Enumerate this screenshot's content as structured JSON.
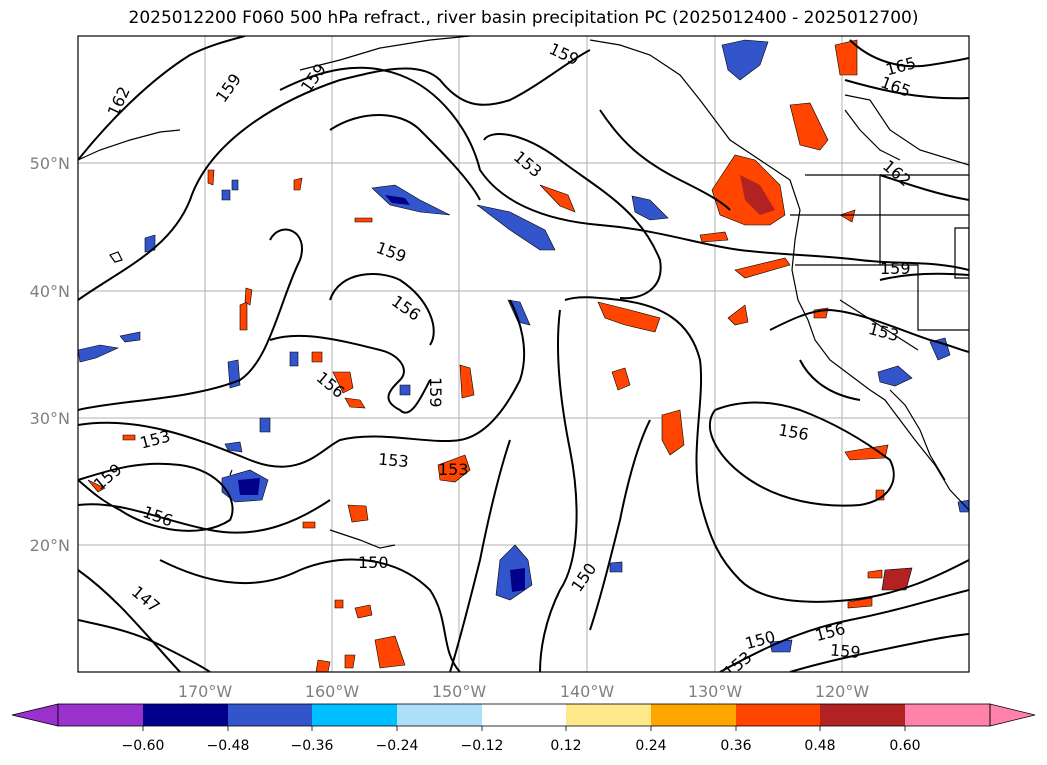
{
  "title": "2025012200 F060 500 hPa refract., river basin precipitation PC (2025012400 - 2025012700)",
  "map": {
    "lat_labels": [
      "50°N",
      "40°N",
      "30°N",
      "20°N"
    ],
    "lon_labels": [
      "170°W",
      "160°W",
      "150°W",
      "140°W",
      "130°W",
      "120°W"
    ],
    "contour_labels": [
      "162",
      "159",
      "159",
      "159",
      "165",
      "165",
      "153",
      "159",
      "156",
      "156",
      "159",
      "153",
      "153",
      "159",
      "156",
      "156",
      "153",
      "150",
      "150",
      "150",
      "156",
      "159",
      "147",
      "162",
      "153",
      "159",
      "153"
    ]
  },
  "colorbar": {
    "ticks": [
      "−0.60",
      "−0.48",
      "−0.36",
      "−0.24",
      "−0.12",
      "0.12",
      "0.24",
      "0.36",
      "0.48",
      "0.60"
    ],
    "colors": [
      "#9932CC",
      "#00008B",
      "#3355CC",
      "#00BFFF",
      "#ADDFF8",
      "#FFFFFF",
      "#FFE88A",
      "#FFA500",
      "#FF4500",
      "#B22222",
      "#FF82AB"
    ]
  }
}
